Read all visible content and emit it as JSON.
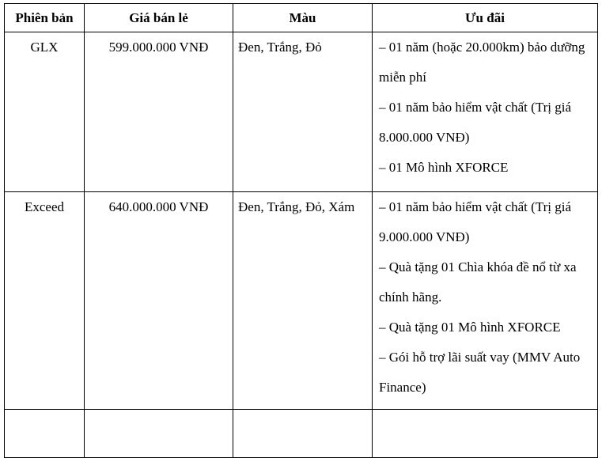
{
  "table": {
    "headers": [
      {
        "label": "Phiên bản"
      },
      {
        "label": "Giá bán lẻ"
      },
      {
        "label": "Màu"
      },
      {
        "label": "Ưu đãi"
      }
    ],
    "rows": [
      {
        "version": "GLX",
        "price": "599.000.000 VNĐ",
        "colors": "Đen, Trắng, Đỏ",
        "promos": [
          "– 01 năm (hoặc 20.000km) bảo dưỡng miễn phí",
          "– 01 năm bảo hiểm vật chất (Trị giá 8.000.000 VNĐ)",
          "– 01 Mô hình XFORCE"
        ]
      },
      {
        "version": "Exceed",
        "price": "640.000.000 VNĐ",
        "colors": "Đen, Trắng, Đỏ, Xám",
        "promos": [
          "– 01 năm bảo hiểm vật chất (Trị giá 9.000.000 VNĐ)",
          "– Quà tặng 01 Chìa khóa đề nổ từ xa chính hãng.",
          "– Quà tặng 01 Mô hình XFORCE",
          "– Gói hỗ trợ lãi suất vay (MMV Auto Finance)"
        ]
      },
      {
        "version": "",
        "price": "",
        "colors": "",
        "promos": []
      }
    ]
  }
}
